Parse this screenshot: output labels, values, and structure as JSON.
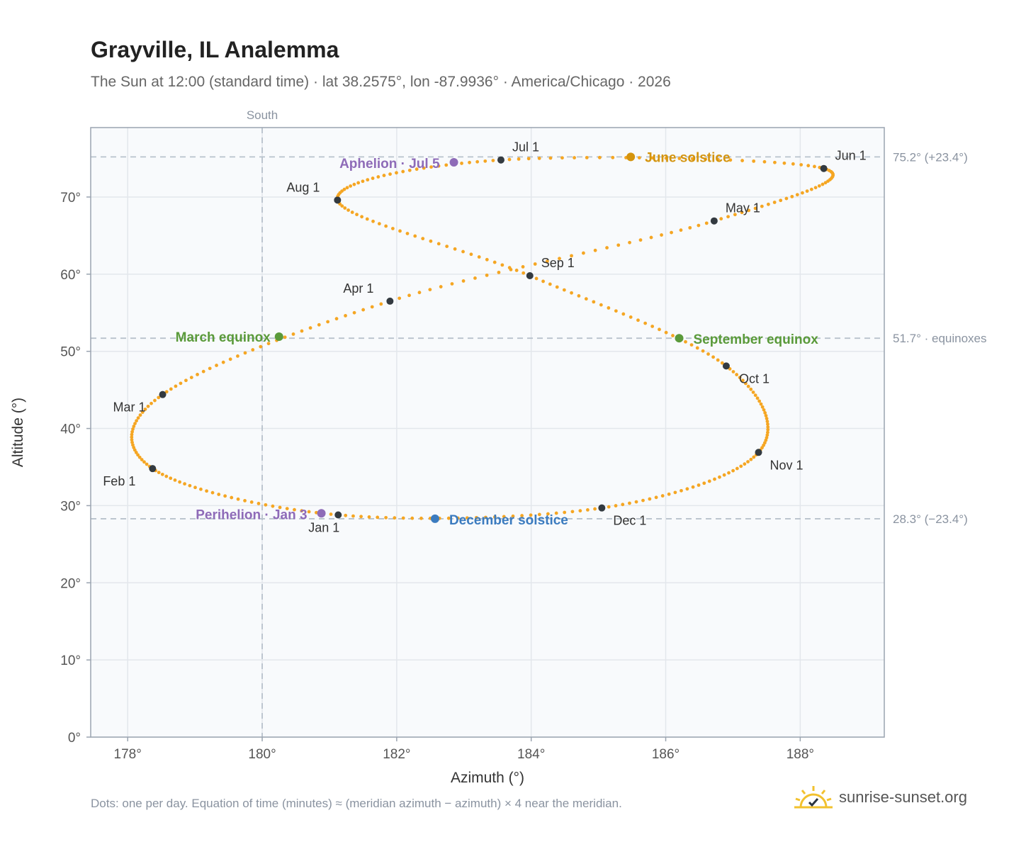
{
  "header": {
    "title": "Grayville, IL Analemma",
    "subtitle": "The Sun at 12:00 (standard time) · lat 38.2575°, lon -87.9936° · America/Chicago · 2026"
  },
  "footer": {
    "note": "Dots: one per day. Equation of time (minutes) ≈ (meridian azimuth − azimuth) × 4 near the meridian.",
    "brand": "sunrise-sunset.org"
  },
  "colors": {
    "curve": "#f5a623",
    "month_marker": "#333a40",
    "equinox": "#5a9a3a",
    "june_solstice": "#d4940e",
    "december_solstice": "#3b7bbf",
    "apsis": "#8e6bb8",
    "reference_line": "#b8c2cc",
    "plot_background": "#f8fafc"
  },
  "chart_data": {
    "type": "scatter",
    "xlabel": "Azimuth (°)",
    "ylabel": "Altitude (°)",
    "xlim": [
      177.45,
      189.25
    ],
    "ylim": [
      0,
      79
    ],
    "xticks": [
      178,
      180,
      182,
      184,
      186,
      188
    ],
    "xtick_labels": [
      "178°",
      "180°",
      "182°",
      "184°",
      "186°",
      "188°"
    ],
    "yticks": [
      0,
      10,
      20,
      30,
      40,
      50,
      60,
      70
    ],
    "ytick_labels": [
      "0°",
      "10°",
      "20°",
      "30°",
      "40°",
      "50°",
      "60°",
      "70°"
    ],
    "grid": true,
    "meridian": {
      "azimuth": 180,
      "label": "South"
    },
    "reference_lines": [
      {
        "altitude": 75.2,
        "label": "75.2° (+23.4°)"
      },
      {
        "altitude": 51.7,
        "label": "51.7° · equinoxes"
      },
      {
        "altitude": 28.3,
        "label": "28.3° (−23.4°)"
      }
    ],
    "monthly_points": [
      {
        "label": "Jan 1",
        "azimuth": 181.13,
        "altitude": 28.8
      },
      {
        "label": "Feb 1",
        "azimuth": 178.37,
        "altitude": 34.8
      },
      {
        "label": "Mar 1",
        "azimuth": 178.52,
        "altitude": 44.4
      },
      {
        "label": "Apr 1",
        "azimuth": 181.9,
        "altitude": 56.5
      },
      {
        "label": "May 1",
        "azimuth": 186.72,
        "altitude": 66.9
      },
      {
        "label": "Jun 1",
        "azimuth": 188.35,
        "altitude": 73.7
      },
      {
        "label": "Jul 1",
        "azimuth": 183.55,
        "altitude": 74.8
      },
      {
        "label": "Aug 1",
        "azimuth": 181.12,
        "altitude": 69.6
      },
      {
        "label": "Sep 1",
        "azimuth": 183.98,
        "altitude": 59.8
      },
      {
        "label": "Oct 1",
        "azimuth": 186.9,
        "altitude": 48.1
      },
      {
        "label": "Nov 1",
        "azimuth": 187.38,
        "altitude": 36.9
      },
      {
        "label": "Dec 1",
        "azimuth": 185.05,
        "altitude": 29.7
      }
    ],
    "events": [
      {
        "label": "March equinox",
        "azimuth": 180.25,
        "altitude": 51.9,
        "kind": "equinox"
      },
      {
        "label": "June solstice",
        "azimuth": 185.48,
        "altitude": 75.2,
        "kind": "june_solstice"
      },
      {
        "label": "September equinox",
        "azimuth": 186.2,
        "altitude": 51.7,
        "kind": "equinox"
      },
      {
        "label": "December solstice",
        "azimuth": 182.57,
        "altitude": 28.3,
        "kind": "december_solstice"
      },
      {
        "label": "Perihelion · Jan 3",
        "azimuth": 180.88,
        "altitude": 29.0,
        "kind": "apsis"
      },
      {
        "label": "Aphelion · Jul 5",
        "azimuth": 182.85,
        "altitude": 74.5,
        "kind": "apsis"
      }
    ]
  }
}
